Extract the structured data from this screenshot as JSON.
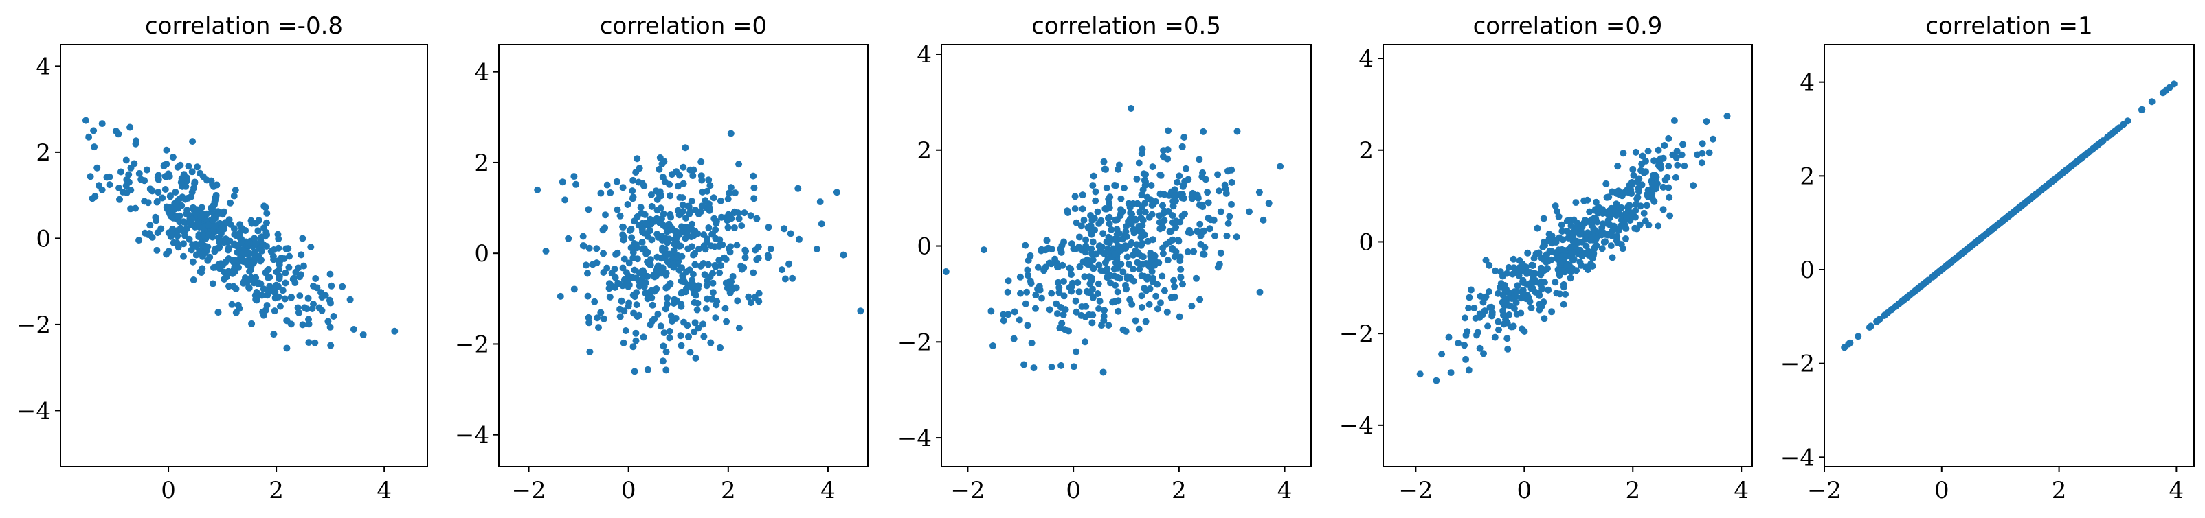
{
  "chart_data": [
    {
      "type": "scatter",
      "title": "correlation =-0.8",
      "correlation": -0.8,
      "n_points": 500,
      "point_color": "#1f77b4",
      "xlim": [
        -2.0,
        4.8
      ],
      "ylim": [
        -5.3,
        4.5
      ],
      "xticks": [
        0,
        2,
        4
      ],
      "yticks": [
        -4,
        -2,
        0,
        2,
        4
      ],
      "xtick_labels": [
        "0",
        "2",
        "4"
      ],
      "ytick_labels": [
        "−4",
        "−2",
        "0",
        "2",
        "4"
      ],
      "x": [
        -1.7,
        -1.0,
        -0.7,
        -0.35,
        -1.3,
        0.4,
        3.9,
        4.45,
        3.4,
        3.6,
        2.7,
        2.9
      ]
    },
    {
      "type": "scatter",
      "title": "correlation =0",
      "correlation": 0,
      "n_points": 500,
      "point_color": "#1f77b4",
      "xlim": [
        -2.6,
        4.8
      ],
      "ylim": [
        -4.7,
        4.6
      ],
      "xticks": [
        -2,
        0,
        2,
        4
      ],
      "yticks": [
        -4,
        -2,
        0,
        2,
        4
      ],
      "xtick_labels": [
        "−2",
        "0",
        "2",
        "4"
      ],
      "ytick_labels": [
        "−4",
        "−2",
        "0",
        "2",
        "4"
      ],
      "x": [
        -2.1,
        4.4,
        1.6,
        1.8,
        0.4,
        -1.3,
        3.8,
        1.3
      ]
    },
    {
      "type": "scatter",
      "title": "correlation =0.5",
      "correlation": 0.5,
      "n_points": 500,
      "point_color": "#1f77b4",
      "xlim": [
        -2.5,
        4.5
      ],
      "ylim": [
        -4.6,
        4.2
      ],
      "xticks": [
        -2,
        0,
        2,
        4
      ],
      "yticks": [
        -4,
        -2,
        0,
        2,
        4
      ],
      "xtick_labels": [
        "−2",
        "0",
        "2",
        "4"
      ],
      "ytick_labels": [
        "−4",
        "−2",
        "0",
        "2",
        "4"
      ],
      "x": [
        -1.2,
        4.1,
        -2.3,
        1.5,
        3.7,
        0.7
      ]
    },
    {
      "type": "scatter",
      "title": "correlation =0.9",
      "correlation": 0.9,
      "n_points": 500,
      "point_color": "#1f77b4",
      "xlim": [
        -2.6,
        4.2
      ],
      "ylim": [
        -4.9,
        4.3
      ],
      "xticks": [
        -2,
        0,
        2,
        4
      ],
      "yticks": [
        -4,
        -2,
        0,
        2,
        4
      ],
      "xtick_labels": [
        "−2",
        "0",
        "2",
        "4"
      ],
      "ytick_labels": [
        "−4",
        "−2",
        "0",
        "2",
        "4"
      ],
      "x": [
        -2.3,
        3.5,
        3.9,
        -1.0
      ]
    },
    {
      "type": "scatter",
      "title": "correlation =1",
      "correlation": 1,
      "n_points": 500,
      "point_color": "#1f77b4",
      "xlim": [
        -2.0,
        4.3
      ],
      "ylim": [
        -4.2,
        4.8
      ],
      "xticks": [
        -2,
        0,
        2,
        4
      ],
      "yticks": [
        -4,
        -2,
        0,
        2,
        4
      ],
      "xtick_labels": [
        "−2",
        "0",
        "2",
        "4"
      ],
      "ytick_labels": [
        "−4",
        "−2",
        "0",
        "2",
        "4"
      ],
      "x": [
        -1.8,
        4.2
      ]
    }
  ]
}
